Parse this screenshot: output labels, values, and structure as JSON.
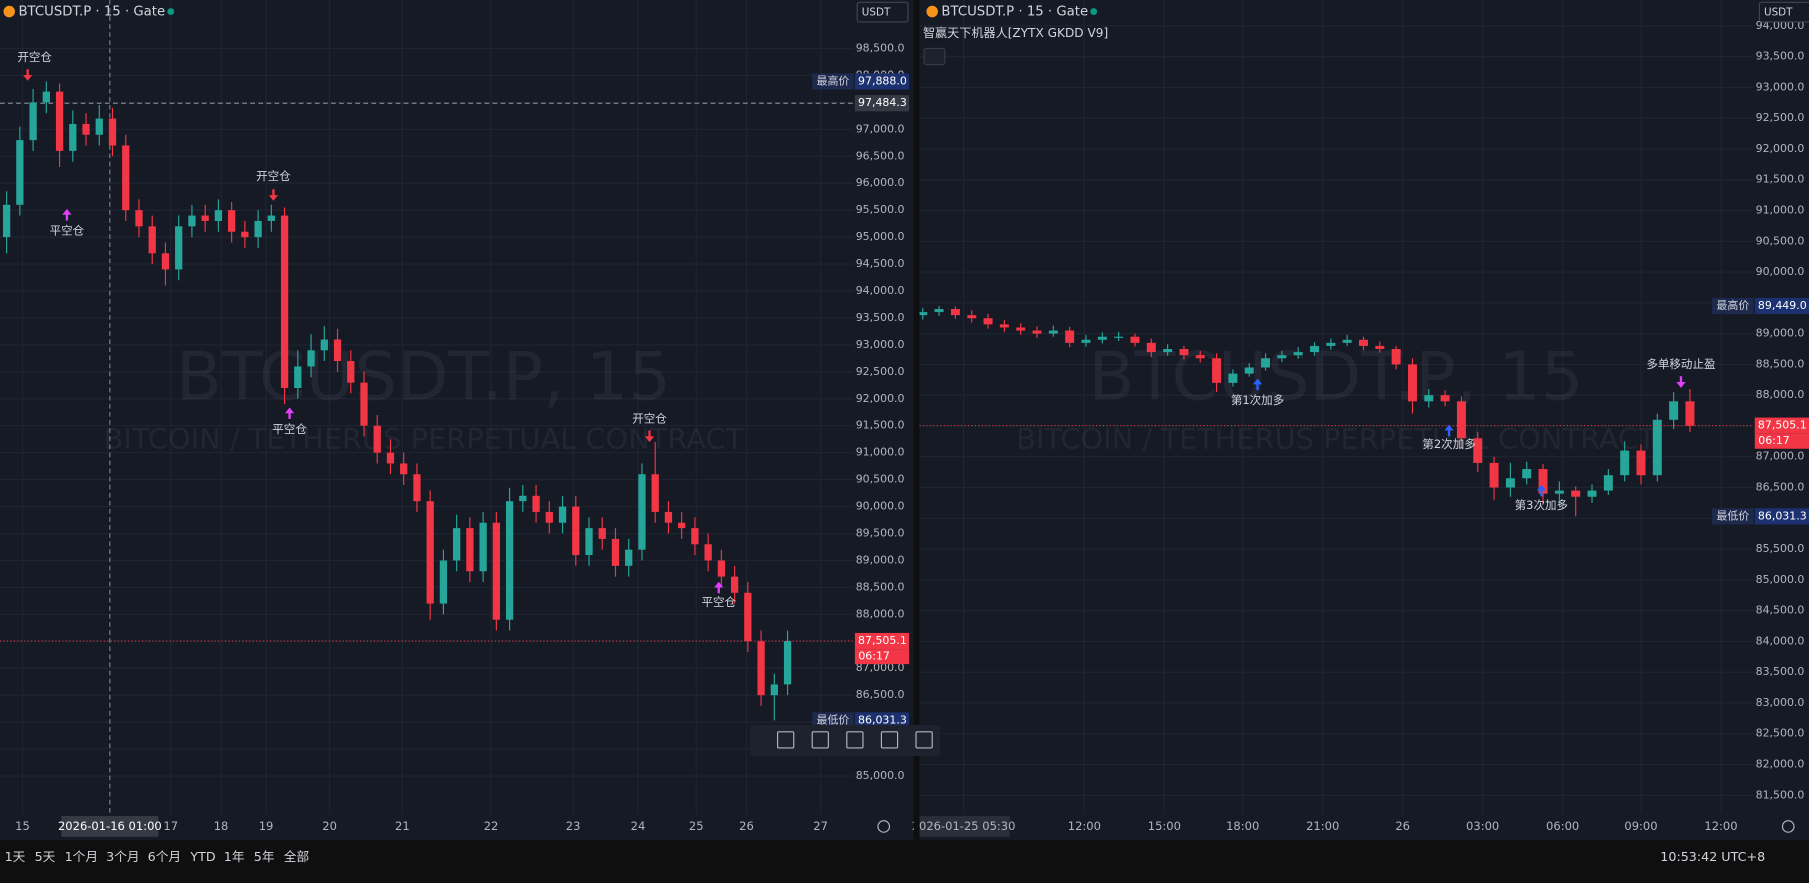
{
  "chart_data": [
    {
      "type": "candlestick",
      "title": "BTCUSDT.P · 15 · Gate",
      "currency": "USDT",
      "watermark": "BTCUSDT.P, 15",
      "watermark_subtitle": "BITCOIN / TETHERUS PERPETUAL CONTRACT",
      "up_color": "#26a69a",
      "down_color": "#f23645",
      "open": [
        95000,
        95600,
        96800,
        97500,
        97700,
        96600,
        97100,
        96900,
        97200,
        96700,
        95500,
        95200,
        94700,
        94400,
        95200,
        95400,
        95300,
        95500,
        95100,
        95000,
        95300,
        95400,
        92200,
        92600,
        92900,
        93100,
        92700,
        92300,
        91500,
        91000,
        90800,
        90600,
        90100,
        88200,
        89000,
        89600,
        88800,
        89700,
        87900,
        90100,
        90200,
        89900,
        89700,
        90000,
        89100,
        89600,
        89400,
        88900,
        89200,
        90600,
        89900,
        89700,
        89600,
        89300,
        89000,
        88700,
        88400,
        87500,
        86500,
        86700
      ],
      "high": [
        95850,
        97050,
        97750,
        97888,
        97850,
        97350,
        97300,
        97450,
        97400,
        96900,
        95700,
        95400,
        94900,
        95400,
        95600,
        95600,
        95700,
        95650,
        95300,
        95500,
        95600,
        95550,
        92900,
        93200,
        93350,
        93300,
        92900,
        92500,
        91700,
        91250,
        91000,
        90800,
        90300,
        89200,
        89850,
        89800,
        89900,
        89900,
        90350,
        90400,
        90400,
        90100,
        90200,
        90200,
        89800,
        89800,
        89600,
        89400,
        90800,
        91200,
        90100,
        89900,
        89800,
        89500,
        89200,
        88900,
        88600,
        87700,
        86900,
        87700
      ],
      "low": [
        94700,
        95400,
        96600,
        97300,
        96300,
        96400,
        96700,
        96700,
        96500,
        95300,
        95000,
        94500,
        94100,
        94200,
        95000,
        95100,
        95100,
        94900,
        94800,
        94800,
        95100,
        91900,
        92000,
        92400,
        92700,
        92500,
        92100,
        91300,
        90800,
        90600,
        90400,
        89900,
        87900,
        88000,
        88800,
        88600,
        88600,
        87700,
        87700,
        89900,
        89700,
        89500,
        89500,
        88900,
        88900,
        89200,
        88700,
        88700,
        89000,
        89700,
        89500,
        89400,
        89100,
        88800,
        88500,
        88200,
        87300,
        86300,
        86031.3,
        86500
      ],
      "close": [
        95600,
        96800,
        97500,
        97700,
        96600,
        97100,
        96900,
        97200,
        96700,
        95500,
        95200,
        94700,
        94400,
        95200,
        95400,
        95300,
        95500,
        95100,
        95000,
        95300,
        95400,
        92200,
        92600,
        92900,
        93100,
        92700,
        92300,
        91500,
        91000,
        90800,
        90600,
        90100,
        88200,
        89000,
        89600,
        88800,
        89700,
        87900,
        90100,
        90200,
        89900,
        89700,
        90000,
        89100,
        89600,
        89400,
        88900,
        89200,
        90600,
        89900,
        89700,
        89600,
        89300,
        89000,
        88700,
        88400,
        87500,
        86500,
        86700,
        87505.1
      ],
      "ylim": [
        84300,
        99400
      ],
      "yticks": [
        {
          "value": 85000,
          "label": "85,000.0"
        },
        {
          "value": 85500,
          "label": "85,500.0"
        },
        {
          "value": 86000,
          "label": "86,000.0"
        },
        {
          "value": 86500,
          "label": "86,500.0"
        },
        {
          "value": 87000,
          "label": "87,000.0"
        },
        {
          "value": 87500,
          "label": "87,500.0"
        },
        {
          "value": 88000,
          "label": "88,000.0"
        },
        {
          "value": 88500,
          "label": "88,500.0"
        },
        {
          "value": 89000,
          "label": "89,000.0"
        },
        {
          "value": 89500,
          "label": "89,500.0"
        },
        {
          "value": 90000,
          "label": "90,000.0"
        },
        {
          "value": 90500,
          "label": "90,500.0"
        },
        {
          "value": 91000,
          "label": "91,000.0"
        },
        {
          "value": 91500,
          "label": "91,500.0"
        },
        {
          "value": 92000,
          "label": "92,000.0"
        },
        {
          "value": 92500,
          "label": "92,500.0"
        },
        {
          "value": 93000,
          "label": "93,000.0"
        },
        {
          "value": 93500,
          "label": "93,500.0"
        },
        {
          "value": 94000,
          "label": "94,000.0"
        },
        {
          "value": 94500,
          "label": "94,500.0"
        },
        {
          "value": 95000,
          "label": "95,000.0"
        },
        {
          "value": 95500,
          "label": "95,500.0"
        },
        {
          "value": 96000,
          "label": "96,000.0"
        },
        {
          "value": 96500,
          "label": "96,500.0"
        },
        {
          "value": 97000,
          "label": "97,000.0"
        },
        {
          "value": 97500,
          "label": "97,500.0"
        },
        {
          "value": 98000,
          "label": "98,000.0"
        },
        {
          "value": 98500,
          "label": "98,500.0"
        }
      ],
      "xlim": [
        -0.5,
        64
      ],
      "xticks": [
        {
          "value": 1.2,
          "label": "15"
        },
        {
          "value": 12.4,
          "label": "17"
        },
        {
          "value": 16.2,
          "label": "18"
        },
        {
          "value": 19.6,
          "label": "19"
        },
        {
          "value": 24.4,
          "label": "20"
        },
        {
          "value": 29.9,
          "label": "21"
        },
        {
          "value": 36.6,
          "label": "22"
        },
        {
          "value": 42.8,
          "label": "23"
        },
        {
          "value": 47.7,
          "label": "24"
        },
        {
          "value": 52.1,
          "label": "25"
        },
        {
          "value": 55.9,
          "label": "26"
        },
        {
          "value": 61.5,
          "label": "27"
        }
      ],
      "crosshair": {
        "x": 7.8,
        "x_label": "2026-01-16  01:00",
        "y": 97484.3,
        "y_label": "97,484.3"
      },
      "price_markers": [
        {
          "name": "最高价",
          "value": 97888,
          "value_label": "97,888.0"
        },
        {
          "value": 87505.1,
          "value_label": "87,505.1",
          "countdown": "06:17"
        },
        {
          "name": "最低价",
          "value": 86031.3,
          "value_label": "86,031.3"
        }
      ],
      "annotations": [
        "开空仓",
        "平空仓",
        "开空仓",
        "平空仓",
        "开空仓",
        "平空仓"
      ]
    },
    {
      "type": "candlestick",
      "title": "BTCUSDT.P · 15 · Gate",
      "currency": "USDT",
      "indicator": "智赢天下机器人[ZYTX GKDD V9]",
      "watermark": "BTCUSDT.P, 15",
      "watermark_subtitle": "BITCOIN / TETHERUS PERPETUAL CONTRACT",
      "up_color": "#26a69a",
      "down_color": "#f23645",
      "open": [
        89300,
        89350,
        89400,
        89300,
        89250,
        89150,
        89100,
        89050,
        89000,
        89050,
        88850,
        88900,
        88950,
        88950,
        88850,
        88700,
        88750,
        88650,
        88600,
        88200,
        88350,
        88450,
        88600,
        88650,
        88700,
        88800,
        88850,
        88900,
        88800,
        88750,
        88500,
        87900,
        88000,
        87900,
        87300,
        86900,
        86500,
        86650,
        86800,
        86400,
        86450,
        86350,
        86450,
        86700,
        87100,
        86700,
        87600,
        87900
      ],
      "high": [
        89420,
        89449,
        89440,
        89380,
        89320,
        89220,
        89170,
        89120,
        89130,
        89110,
        88980,
        89020,
        89030,
        89000,
        88920,
        88830,
        88800,
        88720,
        88680,
        88420,
        88520,
        88680,
        88720,
        88780,
        88860,
        88920,
        88980,
        88950,
        88870,
        88800,
        88600,
        88100,
        88080,
        87980,
        87400,
        87000,
        86900,
        86920,
        86880,
        86600,
        86520,
        86550,
        86800,
        87250,
        87200,
        87700,
        88050,
        88100
      ],
      "low": [
        89230,
        89290,
        89240,
        89180,
        89080,
        89030,
        88980,
        88930,
        88950,
        88780,
        88790,
        88840,
        88880,
        88790,
        88620,
        88640,
        88580,
        88530,
        88050,
        88140,
        88300,
        88400,
        88540,
        88590,
        88640,
        88740,
        88800,
        88730,
        88690,
        88420,
        87700,
        87800,
        87820,
        87150,
        86750,
        86300,
        86350,
        86550,
        86250,
        86200,
        86031.3,
        86250,
        86380,
        86600,
        86550,
        86600,
        87450,
        87400
      ],
      "close": [
        89350,
        89400,
        89300,
        89250,
        89150,
        89100,
        89050,
        89000,
        89050,
        88850,
        88900,
        88950,
        88950,
        88850,
        88700,
        88750,
        88650,
        88600,
        88200,
        88350,
        88450,
        88600,
        88650,
        88700,
        88800,
        88850,
        88900,
        88800,
        88750,
        88500,
        87900,
        88000,
        87900,
        87300,
        86900,
        86500,
        86650,
        86800,
        86400,
        86450,
        86350,
        86450,
        86700,
        87100,
        86700,
        87600,
        87900,
        87505.1
      ],
      "ylim": [
        81200,
        94420
      ],
      "yticks": [
        {
          "value": 81500,
          "label": "81,500.0"
        },
        {
          "value": 82000,
          "label": "82,000.0"
        },
        {
          "value": 82500,
          "label": "82,500.0"
        },
        {
          "value": 83000,
          "label": "83,000.0"
        },
        {
          "value": 83500,
          "label": "83,500.0"
        },
        {
          "value": 84000,
          "label": "84,000.0"
        },
        {
          "value": 84500,
          "label": "84,500.0"
        },
        {
          "value": 85000,
          "label": "85,000.0"
        },
        {
          "value": 85500,
          "label": "85,500.0"
        },
        {
          "value": 86000,
          "label": "86,000.0"
        },
        {
          "value": 86500,
          "label": "86,500.0"
        },
        {
          "value": 87000,
          "label": "87,000.0"
        },
        {
          "value": 87500,
          "label": "87,500.0"
        },
        {
          "value": 88000,
          "label": "88,000.0"
        },
        {
          "value": 88500,
          "label": "88,500.0"
        },
        {
          "value": 89000,
          "label": "89,000.0"
        },
        {
          "value": 89500,
          "label": "89,500.0"
        },
        {
          "value": 90000,
          "label": "90,000.0"
        },
        {
          "value": 90500,
          "label": "90,500.0"
        },
        {
          "value": 91000,
          "label": "91,000.0"
        },
        {
          "value": 91500,
          "label": "91,500.0"
        },
        {
          "value": 92000,
          "label": "92,000.0"
        },
        {
          "value": 92500,
          "label": "92,500.0"
        },
        {
          "value": 93000,
          "label": "93,000.0"
        },
        {
          "value": 93500,
          "label": "93,500.0"
        },
        {
          "value": 94000,
          "label": "94,000.0"
        }
      ],
      "xlim": [
        -0.2,
        50.9
      ],
      "xticks": [
        {
          "value": 2.5,
          "label": "2026-01-25  05:30"
        },
        {
          "value": 9.9,
          "label": "12:00"
        },
        {
          "value": 14.8,
          "label": "15:00"
        },
        {
          "value": 19.6,
          "label": "18:00"
        },
        {
          "value": 24.5,
          "label": "21:00"
        },
        {
          "value": 29.4,
          "label": "26"
        },
        {
          "value": 34.3,
          "label": "03:00"
        },
        {
          "value": 39.2,
          "label": "06:00"
        },
        {
          "value": 44.0,
          "label": "09:00"
        },
        {
          "value": 48.9,
          "label": "12:00"
        }
      ],
      "price_markers": [
        {
          "name": "最高价",
          "value": 89449,
          "value_label": "89,449.0"
        },
        {
          "value": 87505.1,
          "value_label": "87,505.1",
          "countdown": "06:17"
        },
        {
          "name": "最低价",
          "value": 86031.3,
          "value_label": "86,031.3"
        }
      ],
      "annotations": [
        "第1次加多",
        "第2次加多",
        "第3次加多",
        "多单移动止盈"
      ]
    }
  ],
  "toolbar": {
    "ranges": [
      "1天",
      "5天",
      "1个月",
      "3个月",
      "6个月",
      "YTD",
      "1年",
      "5年",
      "全部"
    ],
    "clock": "10:53:42 UTC+8"
  }
}
